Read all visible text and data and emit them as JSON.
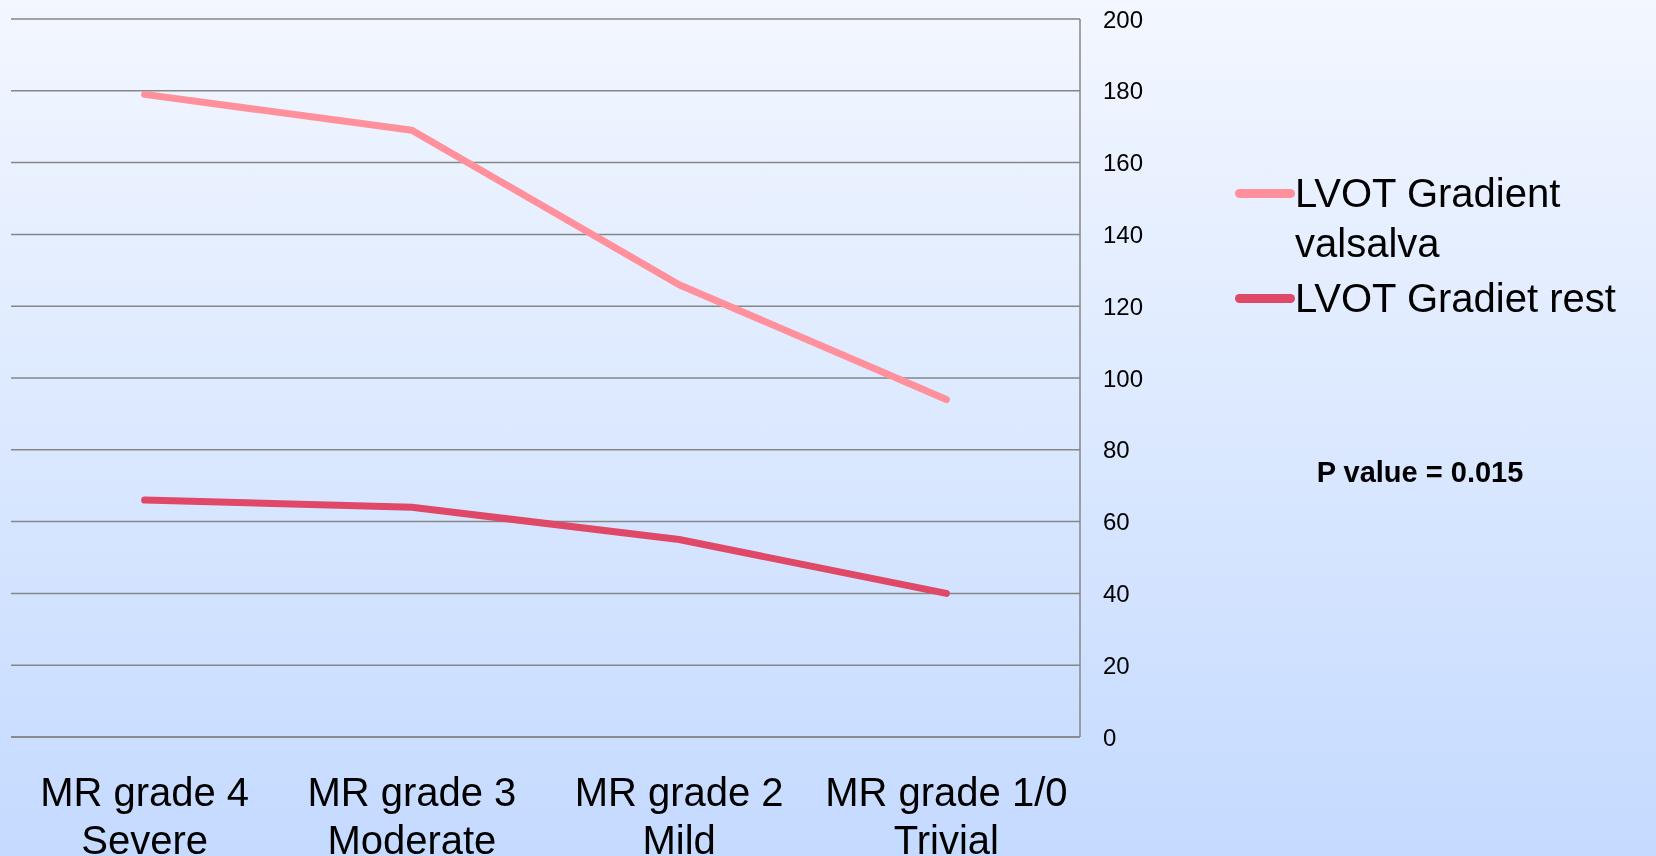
{
  "chart_data": {
    "type": "line",
    "categories": [
      "MR grade 4 Severe",
      "MR grade 3 Moderate",
      "MR grade 2 Mild",
      "MR grade 1/0 Trivial"
    ],
    "series": [
      {
        "name": "LVOT Gradient valsalva",
        "color": "#ff909c",
        "values": [
          179,
          169,
          126,
          94
        ]
      },
      {
        "name": "LVOT Gradiet rest",
        "color": "#df4866",
        "values": [
          66,
          64,
          55,
          40
        ]
      }
    ],
    "ylim": [
      0,
      200
    ],
    "yticks": [
      0,
      20,
      40,
      60,
      80,
      100,
      120,
      140,
      160,
      180,
      200
    ],
    "grid": "y",
    "legend": "right",
    "marker": "none",
    "annotations": [
      "P value = 0.015"
    ]
  }
}
